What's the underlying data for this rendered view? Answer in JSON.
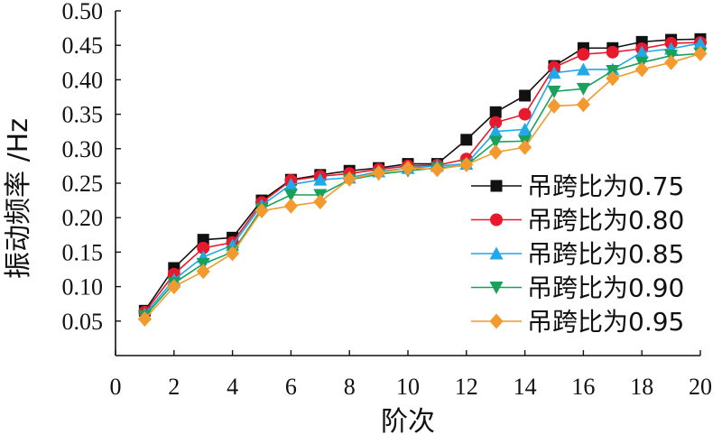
{
  "chart_data": {
    "type": "line",
    "xlabel": "阶次",
    "ylabel": "振动频率 /Hz",
    "xlim": [
      0,
      20
    ],
    "ylim": [
      0.0,
      0.5
    ],
    "xticks": [
      0,
      2,
      4,
      6,
      8,
      10,
      12,
      14,
      16,
      18,
      20
    ],
    "xtick_labels": [
      "0",
      "2",
      "4",
      "6",
      "8",
      "10",
      "12",
      "14",
      "16",
      "18",
      "20"
    ],
    "yticks": [
      0.05,
      0.1,
      0.15,
      0.2,
      0.25,
      0.3,
      0.35,
      0.4,
      0.45,
      0.5
    ],
    "ytick_labels": [
      "0.05",
      "0.10",
      "0.15",
      "0.20",
      "0.25",
      "0.30",
      "0.35",
      "0.40",
      "0.45",
      "0.50"
    ],
    "grid": false,
    "legend_position": "right",
    "x": [
      1,
      2,
      3,
      4,
      5,
      6,
      7,
      8,
      9,
      10,
      11,
      12,
      13,
      14,
      15,
      16,
      17,
      18,
      19,
      20
    ],
    "series": [
      {
        "name": "吊跨比为0.75",
        "color": "#111111",
        "marker": "square",
        "values": [
          0.065,
          0.127,
          0.168,
          0.171,
          0.225,
          0.255,
          0.262,
          0.268,
          0.272,
          0.278,
          0.278,
          0.313,
          0.353,
          0.377,
          0.42,
          0.446,
          0.446,
          0.455,
          0.458,
          0.459
        ]
      },
      {
        "name": "吊跨比为0.80",
        "color": "#e8192c",
        "marker": "circle",
        "values": [
          0.063,
          0.118,
          0.156,
          0.164,
          0.222,
          0.254,
          0.26,
          0.264,
          0.27,
          0.275,
          0.276,
          0.285,
          0.338,
          0.35,
          0.418,
          0.437,
          0.44,
          0.445,
          0.453,
          0.454
        ]
      },
      {
        "name": "吊跨比为0.85",
        "color": "#1fa9e8",
        "marker": "triangle-up",
        "values": [
          0.06,
          0.11,
          0.143,
          0.16,
          0.218,
          0.248,
          0.255,
          0.258,
          0.267,
          0.272,
          0.275,
          0.278,
          0.325,
          0.328,
          0.41,
          0.415,
          0.415,
          0.44,
          0.445,
          0.453
        ]
      },
      {
        "name": "吊跨比为0.90",
        "color": "#17a15a",
        "marker": "triangle-down",
        "values": [
          0.057,
          0.105,
          0.133,
          0.15,
          0.213,
          0.233,
          0.233,
          0.255,
          0.263,
          0.268,
          0.272,
          0.276,
          0.31,
          0.311,
          0.383,
          0.387,
          0.413,
          0.425,
          0.435,
          0.438
        ]
      },
      {
        "name": "吊跨比为0.95",
        "color": "#f29a2e",
        "marker": "diamond",
        "values": [
          0.053,
          0.1,
          0.122,
          0.148,
          0.21,
          0.217,
          0.223,
          0.256,
          0.265,
          0.272,
          0.27,
          0.277,
          0.295,
          0.302,
          0.362,
          0.364,
          0.402,
          0.415,
          0.425,
          0.438
        ]
      }
    ]
  }
}
